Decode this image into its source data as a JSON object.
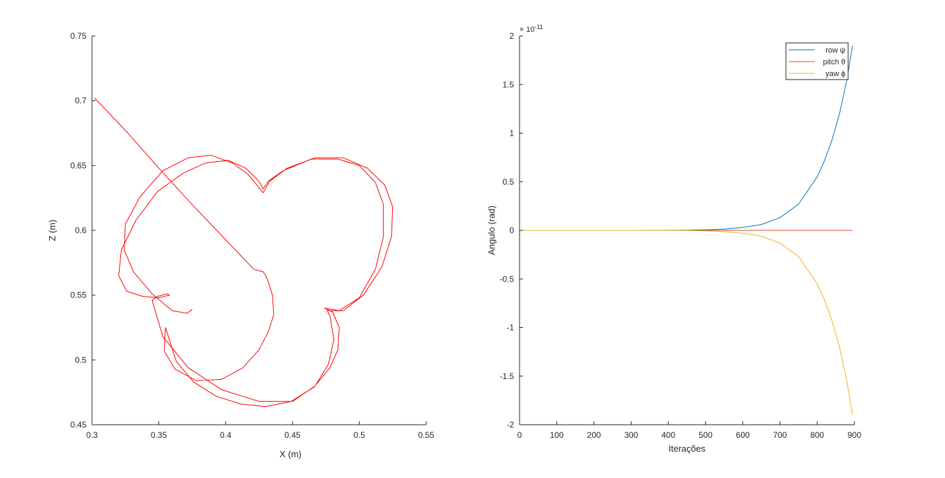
{
  "chart_data": [
    {
      "type": "line",
      "title": "",
      "xlabel": "X (m)",
      "ylabel": "Z (m)",
      "xlim": [
        0.3,
        0.55
      ],
      "ylim": [
        0.45,
        0.75
      ],
      "xticks": [
        "0.3",
        "0.35",
        "0.4",
        "0.45",
        "0.5",
        "0.55"
      ],
      "yticks": [
        "0.45",
        "0.5",
        "0.55",
        "0.6",
        "0.65",
        "0.7",
        "0.75"
      ],
      "grid": false,
      "series": [
        {
          "color": "#ff0000",
          "x": [
            0.302,
            0.326,
            0.35,
            0.373,
            0.397,
            0.421,
            0.428,
            0.43,
            0.432,
            0.435,
            0.436,
            0.432,
            0.425,
            0.413,
            0.397,
            0.378,
            0.362,
            0.354,
            0.355,
            0.363,
            0.376,
            0.393,
            0.411,
            0.43,
            0.449,
            0.466,
            0.478,
            0.484,
            0.485,
            0.48,
            0.474,
            0.485,
            0.5,
            0.512,
            0.518,
            0.518,
            0.512,
            0.5,
            0.484,
            0.464,
            0.443,
            0.432,
            0.428,
            0.426,
            0.423,
            0.415,
            0.402,
            0.385,
            0.368,
            0.349,
            0.333,
            0.322,
            0.32,
            0.326,
            0.338,
            0.35,
            0.358,
            0.356,
            0.349,
            0.345,
            0.353,
            0.372,
            0.397,
            0.425,
            0.45,
            0.467,
            0.477,
            0.481,
            0.478,
            0.476,
            0.488,
            0.503,
            0.517,
            0.524,
            0.525,
            0.519,
            0.506,
            0.488,
            0.467,
            0.446,
            0.433,
            0.428,
            0.424,
            0.417,
            0.405,
            0.389,
            0.372,
            0.353,
            0.336,
            0.325,
            0.324,
            0.331,
            0.345,
            0.36,
            0.371,
            0.375
          ],
          "y": [
            0.702,
            0.676,
            0.648,
            0.622,
            0.596,
            0.57,
            0.568,
            0.565,
            0.56,
            0.55,
            0.535,
            0.522,
            0.508,
            0.494,
            0.485,
            0.484,
            0.493,
            0.507,
            0.525,
            0.499,
            0.483,
            0.472,
            0.466,
            0.464,
            0.468,
            0.479,
            0.494,
            0.508,
            0.525,
            0.537,
            0.54,
            0.538,
            0.548,
            0.57,
            0.595,
            0.62,
            0.637,
            0.65,
            0.655,
            0.655,
            0.646,
            0.638,
            0.632,
            0.636,
            0.64,
            0.648,
            0.654,
            0.652,
            0.644,
            0.63,
            0.608,
            0.585,
            0.565,
            0.553,
            0.549,
            0.548,
            0.55,
            0.551,
            0.549,
            0.546,
            0.518,
            0.494,
            0.477,
            0.468,
            0.468,
            0.48,
            0.497,
            0.516,
            0.534,
            0.538,
            0.538,
            0.55,
            0.572,
            0.595,
            0.618,
            0.635,
            0.648,
            0.656,
            0.656,
            0.648,
            0.638,
            0.629,
            0.634,
            0.643,
            0.652,
            0.658,
            0.656,
            0.646,
            0.626,
            0.605,
            0.585,
            0.568,
            0.551,
            0.538,
            0.536,
            0.539
          ]
        }
      ]
    },
    {
      "type": "line",
      "title": "",
      "xlabel": "Iterações",
      "ylabel": "Angulo (rad)",
      "xlim": [
        0,
        900
      ],
      "ylim": [
        -2,
        2
      ],
      "exponent_label": "× 10",
      "exponent_value": "-11",
      "xticks": [
        "0",
        "100",
        "200",
        "300",
        "400",
        "500",
        "600",
        "700",
        "800",
        "900"
      ],
      "yticks": [
        "-2",
        "-1.5",
        "-1",
        "-0.5",
        "0",
        "0.5",
        "1",
        "1.5",
        "2"
      ],
      "grid": false,
      "legend": "top-right",
      "series": [
        {
          "name": "row ψ",
          "color": "#0072bd",
          "x": [
            0,
            100,
            200,
            300,
            400,
            450,
            500,
            550,
            600,
            650,
            700,
            750,
            800,
            820,
            840,
            860,
            880,
            895
          ],
          "y": [
            0,
            0,
            0,
            0,
            0.001,
            0.002,
            0.006,
            0.013,
            0.03,
            0.06,
            0.13,
            0.27,
            0.55,
            0.72,
            0.93,
            1.2,
            1.55,
            1.9
          ]
        },
        {
          "name": "pitch θ",
          "color": "#d95319",
          "x": [
            0,
            895
          ],
          "y": [
            0,
            0
          ]
        },
        {
          "name": "yaw ϕ",
          "color": "#edb120",
          "x": [
            0,
            100,
            200,
            300,
            400,
            450,
            500,
            550,
            600,
            650,
            700,
            750,
            800,
            820,
            840,
            860,
            880,
            895
          ],
          "y": [
            0,
            0,
            0,
            0,
            -0.001,
            -0.002,
            -0.006,
            -0.013,
            -0.03,
            -0.06,
            -0.13,
            -0.27,
            -0.55,
            -0.72,
            -0.93,
            -1.2,
            -1.55,
            -1.9
          ]
        }
      ]
    }
  ]
}
